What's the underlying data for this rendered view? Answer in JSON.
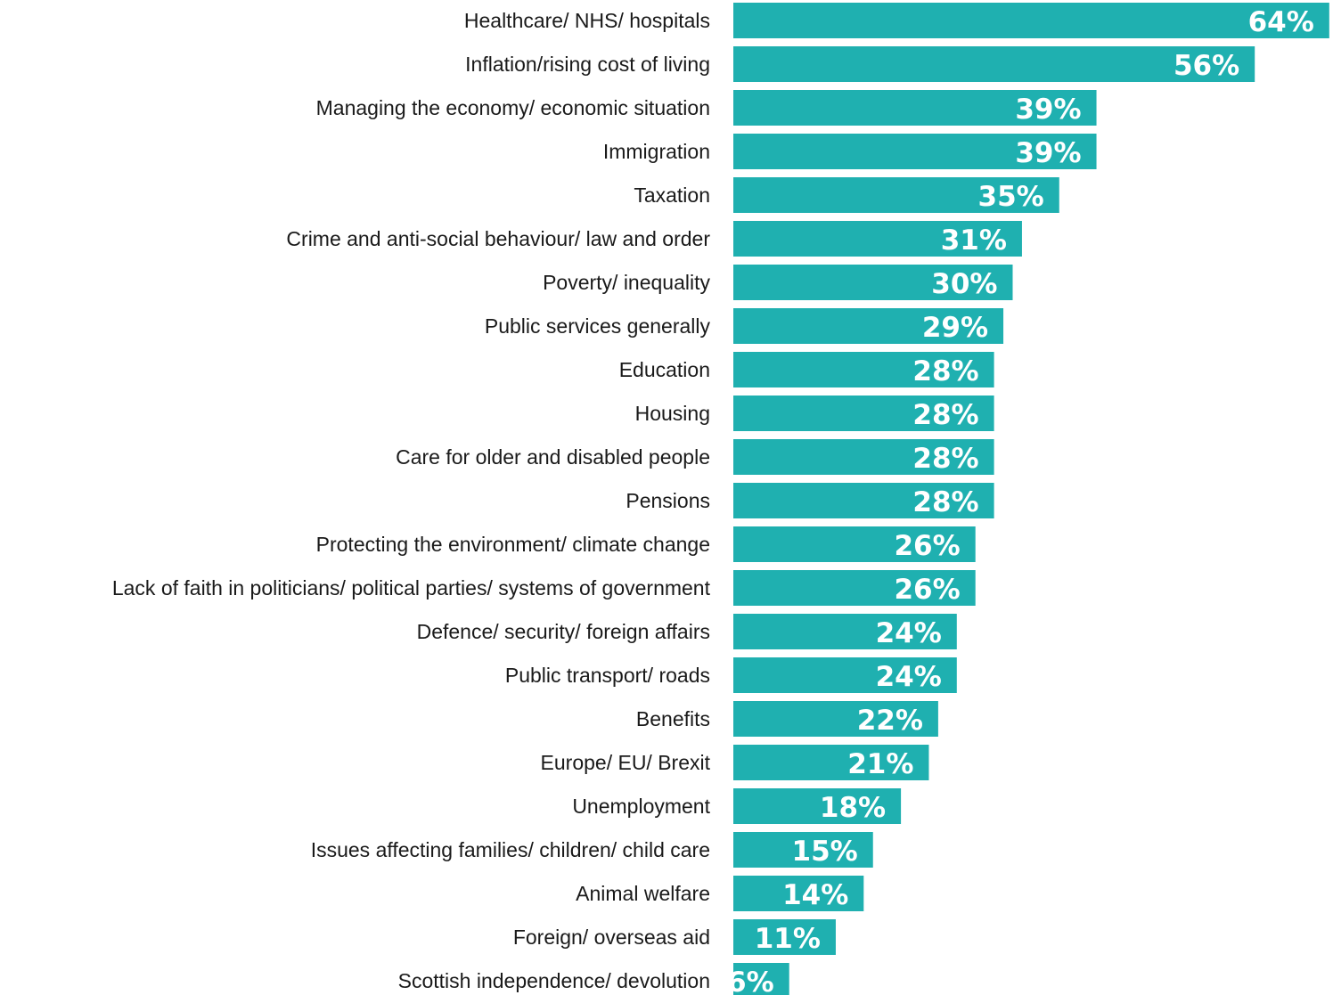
{
  "chart_data": {
    "type": "bar",
    "orientation": "horizontal",
    "title": "",
    "xlabel": "",
    "ylabel": "",
    "xlim": [
      0,
      64
    ],
    "grid": false,
    "legend": "none",
    "bar_color": "#1fb0b0",
    "value_label_color": "#ffffff",
    "categories": [
      "Healthcare/ NHS/ hospitals",
      "Inflation/rising cost of living",
      "Managing the economy/ economic situation",
      "Immigration",
      "Taxation",
      "Crime and anti-social behaviour/ law and order",
      "Poverty/ inequality",
      "Public services generally",
      "Education",
      "Housing",
      "Care for older and disabled people",
      "Pensions",
      "Protecting the environment/ climate change",
      "Lack of faith in politicians/ political parties/ systems of government",
      "Defence/ security/ foreign affairs",
      "Public transport/ roads",
      "Benefits",
      "Europe/ EU/ Brexit",
      "Unemployment",
      "Issues affecting families/ children/ child care",
      "Animal welfare",
      "Foreign/ overseas aid",
      "Scottish independence/ devolution"
    ],
    "values": [
      64,
      56,
      39,
      39,
      35,
      31,
      30,
      29,
      28,
      28,
      28,
      28,
      26,
      26,
      24,
      24,
      22,
      21,
      18,
      15,
      14,
      11,
      6
    ],
    "value_labels": [
      "64%",
      "56%",
      "39%",
      "39%",
      "35%",
      "31%",
      "30%",
      "29%",
      "28%",
      "28%",
      "28%",
      "28%",
      "26%",
      "26%",
      "24%",
      "24%",
      "22%",
      "21%",
      "18%",
      "15%",
      "14%",
      "11%",
      "6%"
    ]
  }
}
